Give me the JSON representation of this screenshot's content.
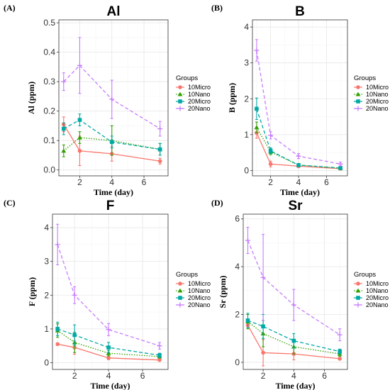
{
  "chart_data": [
    {
      "type": "line",
      "panel_label": "(A)",
      "title": "Al",
      "xlabel": "Time (day)",
      "ylabel": "Al (ppm)",
      "x": [
        1,
        2,
        4,
        7
      ],
      "xlim": [
        0.7,
        7.5
      ],
      "ylim": [
        -0.02,
        0.51
      ],
      "xticks": [
        2,
        4,
        6
      ],
      "yticks": [
        0.0,
        0.1,
        0.2,
        0.3,
        0.4,
        0.5
      ],
      "ytick_labels": [
        "0.0",
        "0.1",
        "0.2",
        "0.3",
        "0.4",
        "0.5"
      ],
      "legend_title": "Groups",
      "legend_position": "right",
      "grid": true,
      "series": [
        {
          "name": "10Micro",
          "color": "#F8766D",
          "linestyle": "solid",
          "marker": "circle",
          "values": [
            0.155,
            0.065,
            0.055,
            0.03
          ],
          "errors": [
            0.025,
            0.05,
            0.025,
            0.01
          ]
        },
        {
          "name": "10Nano",
          "color": "#31A000",
          "linestyle": "dotted",
          "marker": "triangle",
          "values": [
            0.065,
            0.11,
            0.1,
            0.07
          ],
          "errors": [
            0.02,
            0.02,
            0.05,
            0.02
          ]
        },
        {
          "name": "20Micro",
          "color": "#00A9A5",
          "linestyle": "dashed",
          "marker": "square",
          "values": [
            0.14,
            0.17,
            0.095,
            0.07
          ],
          "errors": [
            0.02,
            0.02,
            0.02,
            0.02
          ]
        },
        {
          "name": "20Nano",
          "color": "#C77CFF",
          "linestyle": "dashed",
          "marker": "plus",
          "values": [
            0.3,
            0.355,
            0.24,
            0.14
          ],
          "errors": [
            0.03,
            0.095,
            0.065,
            0.025
          ]
        }
      ]
    },
    {
      "type": "line",
      "panel_label": "(B)",
      "title": "B",
      "xlabel": "Time (day)",
      "ylabel": "B (ppm)",
      "x": [
        1,
        2,
        4,
        7
      ],
      "xlim": [
        0.7,
        7.5
      ],
      "ylim": [
        -0.15,
        4.2
      ],
      "xticks": [
        2,
        4,
        6
      ],
      "yticks": [
        0,
        1,
        2,
        3,
        4
      ],
      "ytick_labels": [
        "0",
        "1",
        "2",
        "3",
        "4"
      ],
      "legend_title": "Groups",
      "legend_position": "right",
      "grid": true,
      "series": [
        {
          "name": "10Micro",
          "color": "#F8766D",
          "linestyle": "solid",
          "marker": "circle",
          "values": [
            1.05,
            0.18,
            0.12,
            0.05
          ],
          "errors": [
            0.15,
            0.08,
            0.04,
            0.03
          ]
        },
        {
          "name": "10Nano",
          "color": "#31A000",
          "linestyle": "dotted",
          "marker": "triangle",
          "values": [
            1.2,
            0.52,
            0.15,
            0.06
          ],
          "errors": [
            0.15,
            0.08,
            0.04,
            0.03
          ]
        },
        {
          "name": "20Micro",
          "color": "#00A9A5",
          "linestyle": "dashed",
          "marker": "square",
          "values": [
            1.72,
            0.55,
            0.15,
            0.07
          ],
          "errors": [
            0.3,
            0.08,
            0.04,
            0.03
          ]
        },
        {
          "name": "20Nano",
          "color": "#C77CFF",
          "linestyle": "dashed",
          "marker": "plus",
          "values": [
            3.35,
            0.98,
            0.4,
            0.18
          ],
          "errors": [
            0.3,
            0.1,
            0.07,
            0.05
          ]
        }
      ]
    },
    {
      "type": "line",
      "panel_label": "(C)",
      "title": "F",
      "xlabel": "Time (day)",
      "ylabel": "F (ppm)",
      "x": [
        1,
        2,
        4,
        7
      ],
      "xlim": [
        0.7,
        7.5
      ],
      "ylim": [
        -0.2,
        4.4
      ],
      "xticks": [
        2,
        4,
        6
      ],
      "yticks": [
        0,
        1,
        2,
        3,
        4
      ],
      "ytick_labels": [
        "0",
        "1",
        "2",
        "3",
        "4"
      ],
      "legend_title": "Groups",
      "legend_position": "right",
      "grid": true,
      "series": [
        {
          "name": "10Micro",
          "color": "#F8766D",
          "linestyle": "solid",
          "marker": "circle",
          "values": [
            0.55,
            0.45,
            0.14,
            0.08
          ],
          "errors": [
            0.03,
            0.2,
            0.05,
            0.03
          ]
        },
        {
          "name": "10Nano",
          "color": "#31A000",
          "linestyle": "dotted",
          "marker": "triangle",
          "values": [
            0.95,
            0.6,
            0.28,
            0.18
          ],
          "errors": [
            0.2,
            0.3,
            0.08,
            0.04
          ]
        },
        {
          "name": "20Micro",
          "color": "#00A9A5",
          "linestyle": "dashed",
          "marker": "square",
          "values": [
            1.0,
            0.82,
            0.45,
            0.22
          ],
          "errors": [
            0.2,
            0.3,
            0.15,
            0.06
          ]
        },
        {
          "name": "20Nano",
          "color": "#C77CFF",
          "linestyle": "dashed",
          "marker": "plus",
          "values": [
            3.5,
            2.0,
            0.98,
            0.5
          ],
          "errors": [
            0.6,
            0.25,
            0.18,
            0.1
          ]
        }
      ]
    },
    {
      "type": "line",
      "panel_label": "(D)",
      "title": "Sr",
      "xlabel": "Time (day)",
      "ylabel": "Sr (ppm)",
      "x": [
        1,
        2,
        4,
        7
      ],
      "xlim": [
        0.7,
        7.5
      ],
      "ylim": [
        -0.3,
        6.2
      ],
      "xticks": [
        2,
        4,
        6
      ],
      "yticks": [
        0,
        2,
        4,
        6
      ],
      "ytick_labels": [
        "0",
        "2",
        "4",
        "6"
      ],
      "legend_title": "Groups",
      "legend_position": "right",
      "grid": true,
      "series": [
        {
          "name": "10Micro",
          "color": "#F8766D",
          "linestyle": "solid",
          "marker": "circle",
          "values": [
            1.55,
            0.4,
            0.35,
            0.15
          ],
          "errors": [
            0.1,
            0.55,
            0.25,
            0.05
          ]
        },
        {
          "name": "10Nano",
          "color": "#31A000",
          "linestyle": "dotted",
          "marker": "triangle",
          "values": [
            1.7,
            1.2,
            0.65,
            0.35
          ],
          "errors": [
            0.3,
            0.55,
            0.3,
            0.1
          ]
        },
        {
          "name": "20Micro",
          "color": "#00A9A5",
          "linestyle": "dashed",
          "marker": "square",
          "values": [
            1.75,
            1.5,
            0.9,
            0.45
          ],
          "errors": [
            0.3,
            0.5,
            0.3,
            0.1
          ]
        },
        {
          "name": "20Nano",
          "color": "#C77CFF",
          "linestyle": "dashed",
          "marker": "plus",
          "values": [
            5.1,
            3.55,
            2.4,
            1.15
          ],
          "errors": [
            0.55,
            1.8,
            0.65,
            0.25
          ]
        }
      ]
    }
  ]
}
